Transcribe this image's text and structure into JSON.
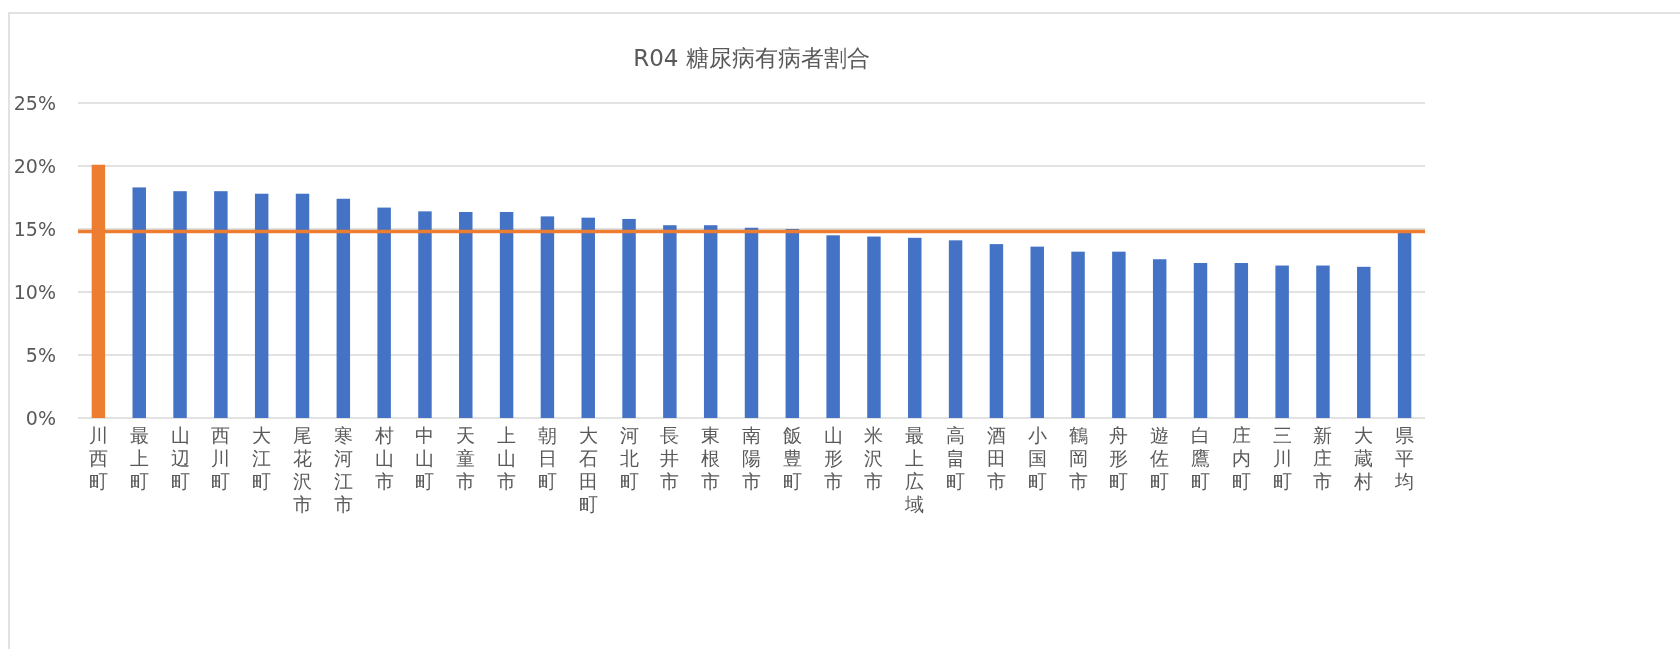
{
  "chart_data": {
    "type": "bar",
    "title": "R04 糖尿病有病者割合",
    "categories": [
      "川西町",
      "最上町",
      "山辺町",
      "西川町",
      "大江町",
      "尾花沢市",
      "寒河江市",
      "村山市",
      "中山町",
      "天童市",
      "上山市",
      "朝日町",
      "大石田町",
      "河北町",
      "長井市",
      "東根市",
      "南陽市",
      "飯豊町",
      "山形市",
      "米沢市",
      "最上広域",
      "高畠町",
      "酒田市",
      "小国町",
      "鶴岡市",
      "舟形町",
      "遊佐町",
      "白鷹町",
      "庄内町",
      "三川町",
      "新庄市",
      "大蔵村",
      "県平均"
    ],
    "values": [
      20.1,
      18.3,
      18.0,
      18.0,
      17.8,
      17.8,
      17.4,
      16.7,
      16.4,
      16.35,
      16.35,
      16.0,
      15.9,
      15.8,
      15.3,
      15.3,
      15.1,
      15.0,
      14.5,
      14.4,
      14.3,
      14.1,
      13.8,
      13.6,
      13.2,
      13.2,
      12.6,
      12.3,
      12.3,
      12.1,
      12.1,
      12.0,
      14.8
    ],
    "colors": [
      "#ed7d31",
      "#4472c4",
      "#4472c4",
      "#4472c4",
      "#4472c4",
      "#4472c4",
      "#4472c4",
      "#4472c4",
      "#4472c4",
      "#4472c4",
      "#4472c4",
      "#4472c4",
      "#4472c4",
      "#4472c4",
      "#4472c4",
      "#4472c4",
      "#4472c4",
      "#4472c4",
      "#4472c4",
      "#4472c4",
      "#4472c4",
      "#4472c4",
      "#4472c4",
      "#4472c4",
      "#4472c4",
      "#4472c4",
      "#4472c4",
      "#4472c4",
      "#4472c4",
      "#4472c4",
      "#4472c4",
      "#4472c4",
      "#4472c4"
    ],
    "ylim": [
      0,
      25
    ],
    "yticks": [
      {
        "value": 0,
        "label": "0%"
      },
      {
        "value": 5,
        "label": "5%"
      },
      {
        "value": 10,
        "label": "10%"
      },
      {
        "value": 15,
        "label": "15%"
      },
      {
        "value": 20,
        "label": "20%"
      },
      {
        "value": 25,
        "label": "25%"
      }
    ],
    "ref_lines": [
      {
        "axis": "y",
        "value": 14.8,
        "color": "#ed7d31"
      }
    ],
    "grid": "y"
  }
}
